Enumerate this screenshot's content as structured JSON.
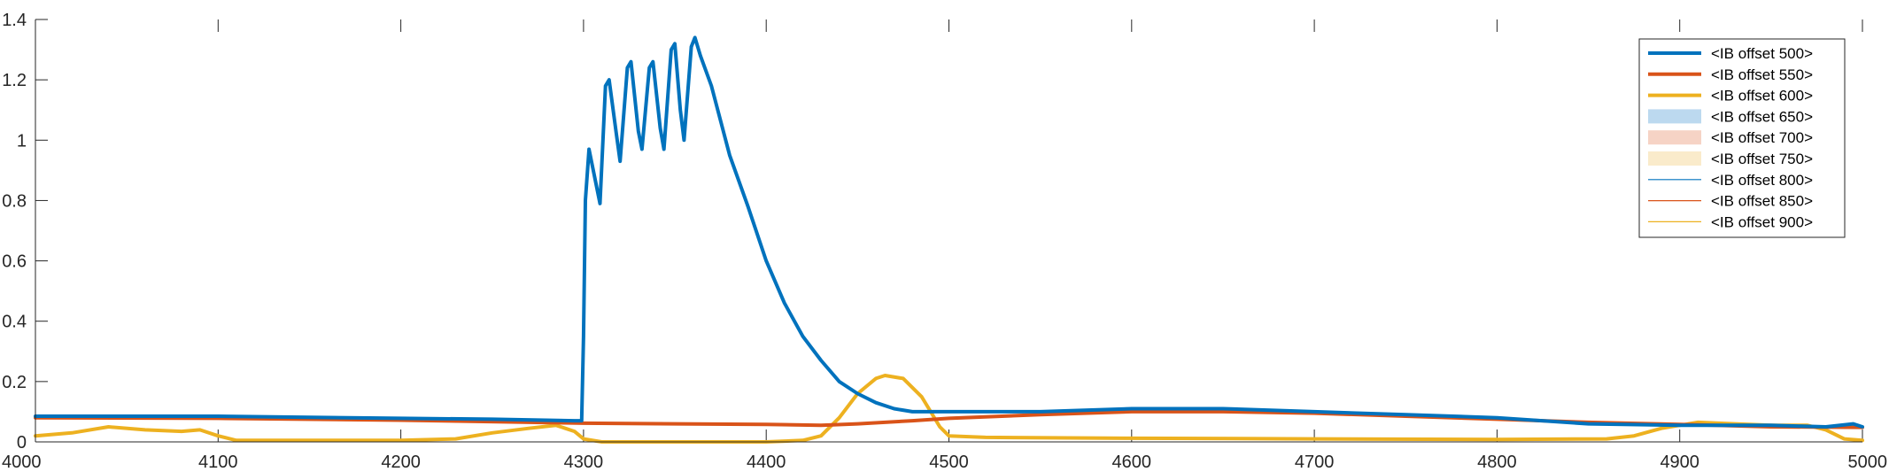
{
  "chart_data": {
    "type": "line",
    "title": "",
    "xlabel": "",
    "ylabel": "",
    "xlim": [
      4000,
      5000
    ],
    "ylim": [
      0,
      1.4
    ],
    "x_ticks": [
      "4000",
      "4100",
      "4200",
      "4300",
      "4400",
      "4500",
      "4600",
      "4700",
      "4800",
      "4900",
      "5000"
    ],
    "y_ticks": [
      "0",
      "0.2",
      "0.4",
      "0.6",
      "0.8",
      "1",
      "1.2",
      "1.4"
    ],
    "legend_position": "top-right",
    "colors": {
      "blue": "#0072BD",
      "orange": "#D95319",
      "yellow": "#EDB120",
      "axis": "#262626"
    },
    "series": [
      {
        "name": "<IB offset 500>",
        "style": "thick-line",
        "color": "#0072BD",
        "points": [
          [
            4000,
            0.085
          ],
          [
            4100,
            0.085
          ],
          [
            4200,
            0.078
          ],
          [
            4250,
            0.075
          ],
          [
            4295,
            0.07
          ],
          [
            4299,
            0.07
          ],
          [
            4300,
            0.35
          ],
          [
            4301,
            0.8
          ],
          [
            4303,
            0.97
          ],
          [
            4306,
            0.88
          ],
          [
            4309,
            0.79
          ],
          [
            4312,
            1.18
          ],
          [
            4314,
            1.2
          ],
          [
            4318,
            1.02
          ],
          [
            4320,
            0.93
          ],
          [
            4324,
            1.24
          ],
          [
            4326,
            1.26
          ],
          [
            4330,
            1.03
          ],
          [
            4332,
            0.97
          ],
          [
            4336,
            1.24
          ],
          [
            4338,
            1.26
          ],
          [
            4342,
            1.04
          ],
          [
            4344,
            0.97
          ],
          [
            4348,
            1.3
          ],
          [
            4350,
            1.32
          ],
          [
            4353,
            1.1
          ],
          [
            4355,
            1.0
          ],
          [
            4359,
            1.31
          ],
          [
            4361,
            1.34
          ],
          [
            4364,
            1.28
          ],
          [
            4370,
            1.18
          ],
          [
            4380,
            0.95
          ],
          [
            4390,
            0.78
          ],
          [
            4400,
            0.6
          ],
          [
            4410,
            0.46
          ],
          [
            4420,
            0.35
          ],
          [
            4430,
            0.27
          ],
          [
            4440,
            0.2
          ],
          [
            4450,
            0.16
          ],
          [
            4460,
            0.13
          ],
          [
            4470,
            0.11
          ],
          [
            4480,
            0.1
          ],
          [
            4500,
            0.1
          ],
          [
            4550,
            0.1
          ],
          [
            4600,
            0.11
          ],
          [
            4650,
            0.11
          ],
          [
            4700,
            0.1
          ],
          [
            4750,
            0.09
          ],
          [
            4800,
            0.08
          ],
          [
            4850,
            0.06
          ],
          [
            4900,
            0.055
          ],
          [
            4950,
            0.055
          ],
          [
            4980,
            0.05
          ],
          [
            4995,
            0.06
          ],
          [
            5000,
            0.05
          ]
        ]
      },
      {
        "name": "<IB offset 550>",
        "style": "thick-line",
        "color": "#D95319",
        "points": [
          [
            4000,
            0.08
          ],
          [
            4100,
            0.078
          ],
          [
            4200,
            0.072
          ],
          [
            4300,
            0.062
          ],
          [
            4350,
            0.06
          ],
          [
            4400,
            0.058
          ],
          [
            4430,
            0.055
          ],
          [
            4450,
            0.06
          ],
          [
            4480,
            0.07
          ],
          [
            4500,
            0.078
          ],
          [
            4550,
            0.09
          ],
          [
            4600,
            0.1
          ],
          [
            4650,
            0.1
          ],
          [
            4700,
            0.095
          ],
          [
            4750,
            0.085
          ],
          [
            4800,
            0.075
          ],
          [
            4850,
            0.065
          ],
          [
            4900,
            0.058
          ],
          [
            4950,
            0.05
          ],
          [
            5000,
            0.048
          ]
        ]
      },
      {
        "name": "<IB offset 600>",
        "style": "thick-line",
        "color": "#EDB120",
        "points": [
          [
            4000,
            0.02
          ],
          [
            4020,
            0.03
          ],
          [
            4040,
            0.05
          ],
          [
            4060,
            0.04
          ],
          [
            4080,
            0.035
          ],
          [
            4090,
            0.04
          ],
          [
            4100,
            0.02
          ],
          [
            4110,
            0.005
          ],
          [
            4200,
            0.005
          ],
          [
            4230,
            0.01
          ],
          [
            4250,
            0.03
          ],
          [
            4270,
            0.045
          ],
          [
            4285,
            0.055
          ],
          [
            4290,
            0.045
          ],
          [
            4295,
            0.035
          ],
          [
            4300,
            0.01
          ],
          [
            4310,
            0.0
          ],
          [
            4400,
            0.0
          ],
          [
            4420,
            0.005
          ],
          [
            4430,
            0.02
          ],
          [
            4440,
            0.08
          ],
          [
            4450,
            0.16
          ],
          [
            4460,
            0.21
          ],
          [
            4465,
            0.22
          ],
          [
            4475,
            0.21
          ],
          [
            4485,
            0.15
          ],
          [
            4490,
            0.1
          ],
          [
            4495,
            0.05
          ],
          [
            4500,
            0.02
          ],
          [
            4520,
            0.015
          ],
          [
            4600,
            0.012
          ],
          [
            4700,
            0.01
          ],
          [
            4800,
            0.008
          ],
          [
            4860,
            0.01
          ],
          [
            4875,
            0.02
          ],
          [
            4890,
            0.045
          ],
          [
            4910,
            0.065
          ],
          [
            4930,
            0.06
          ],
          [
            4950,
            0.055
          ],
          [
            4970,
            0.055
          ],
          [
            4980,
            0.04
          ],
          [
            4990,
            0.01
          ],
          [
            5000,
            0.005
          ]
        ]
      },
      {
        "name": "<IB offset 650>",
        "style": "band",
        "color": "#BCD9EF"
      },
      {
        "name": "<IB offset 700>",
        "style": "band",
        "color": "#F6D3C5"
      },
      {
        "name": "<IB offset 750>",
        "style": "band",
        "color": "#FAEBCB"
      },
      {
        "name": "<IB offset 800>",
        "style": "thin-line",
        "color": "#0072BD"
      },
      {
        "name": "<IB offset 850>",
        "style": "thin-line",
        "color": "#D95319"
      },
      {
        "name": "<IB offset 900>",
        "style": "thin-line",
        "color": "#EDB120"
      }
    ]
  }
}
